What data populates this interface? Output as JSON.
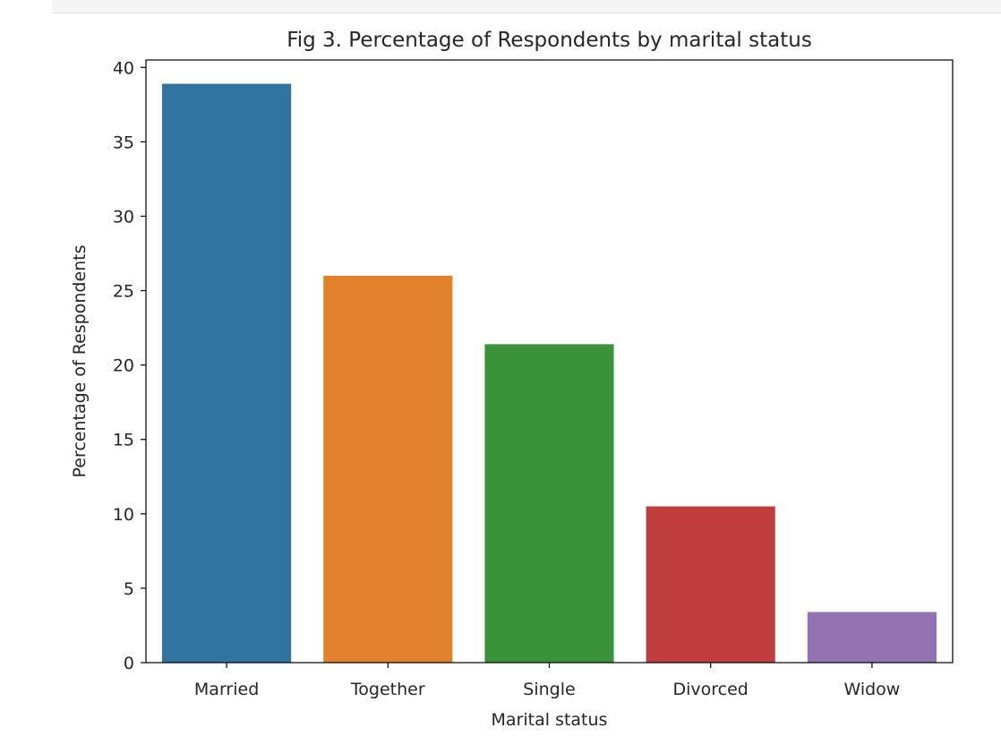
{
  "chart_data": {
    "type": "bar",
    "title": "Fig 3. Percentage of Respondents by marital status",
    "xlabel": "Marital status",
    "ylabel": "Percentage of Respondents",
    "categories": [
      "Married",
      "Together",
      "Single",
      "Divorced",
      "Widow"
    ],
    "values": [
      38.9,
      26.0,
      21.4,
      10.5,
      3.4
    ],
    "colors": [
      "#3274a1",
      "#e1812c",
      "#3a923a",
      "#c03d3e",
      "#9372b2"
    ],
    "ylim": [
      0,
      40.5
    ],
    "yticks": [
      0,
      5,
      10,
      15,
      20,
      25,
      30,
      35,
      40
    ],
    "grid": false,
    "legend": "none"
  }
}
